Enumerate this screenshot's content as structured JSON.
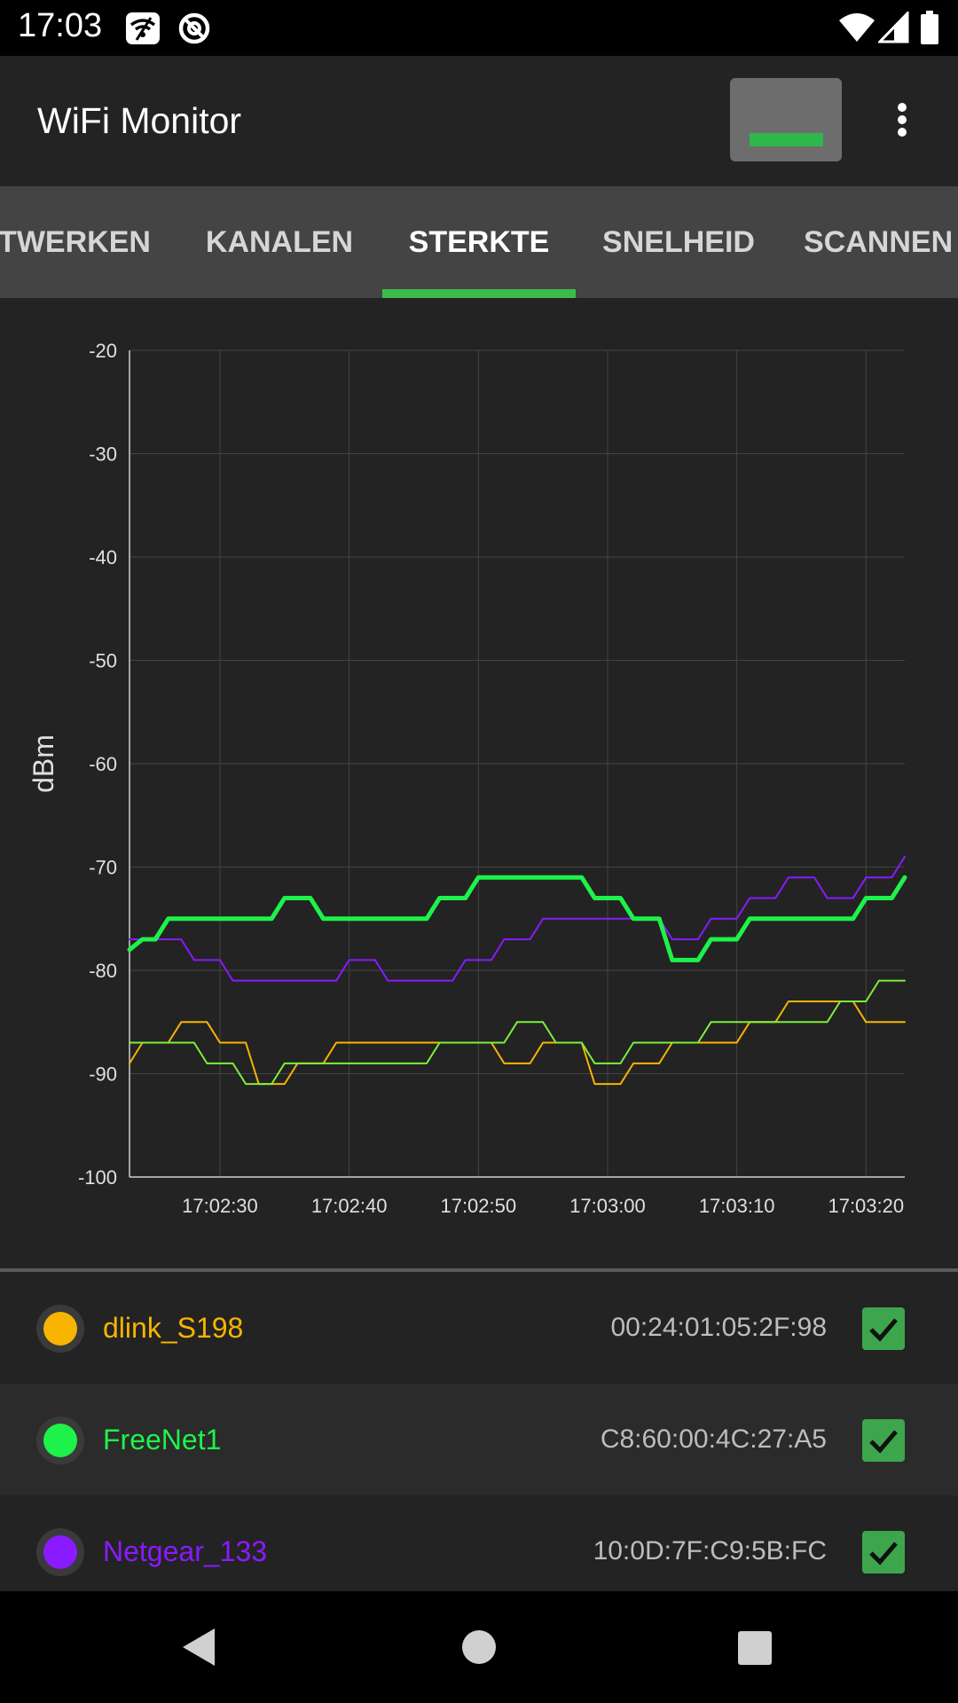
{
  "status_bar": {
    "time": "17:03",
    "icons": [
      "wifi-off-notification-icon",
      "at-sign-notification-icon",
      "wifi-signal-icon",
      "cell-signal-icon",
      "battery-icon"
    ]
  },
  "app_bar": {
    "title": "WiFi Monitor"
  },
  "tabs": [
    {
      "label": "TWERKEN",
      "active": false
    },
    {
      "label": "KANALEN",
      "active": false
    },
    {
      "label": "STERKTE",
      "active": true
    },
    {
      "label": "SNELHEID",
      "active": false
    },
    {
      "label": "SCANNEN",
      "active": false
    }
  ],
  "chart_data": {
    "type": "line",
    "ylabel": "dBm",
    "xlabel": "",
    "ylim": [
      -100,
      -20
    ],
    "y_ticks": [
      "-20",
      "-30",
      "-40",
      "-50",
      "-60",
      "-70",
      "-80",
      "-90",
      "-100"
    ],
    "x_ticks": [
      "17:02:30",
      "17:02:40",
      "17:02:50",
      "17:03:00",
      "17:03:10",
      "17:03:20"
    ],
    "grid": true,
    "x": [
      0,
      1,
      2,
      3,
      4,
      5,
      6,
      7,
      8,
      9,
      10,
      11,
      12,
      13,
      14,
      15,
      16,
      17,
      18,
      19,
      20,
      21,
      22,
      23,
      24,
      25,
      26,
      27,
      28,
      29,
      30,
      31,
      32,
      33,
      34,
      35,
      36,
      37,
      38,
      39,
      40,
      41,
      42,
      43,
      44,
      45,
      46,
      47,
      48,
      49,
      50,
      51,
      52,
      53,
      54,
      55,
      56,
      57,
      58,
      59,
      60
    ],
    "series": [
      {
        "name": "dlink_S198",
        "color": "#f8b400",
        "width": 2,
        "values": [
          -89,
          -87,
          -87,
          -87,
          -85,
          -85,
          -85,
          -87,
          -87,
          -87,
          -91,
          -91,
          -91,
          -89,
          -89,
          -89,
          -87,
          -87,
          -87,
          -87,
          -87,
          -87,
          -87,
          -87,
          -87,
          -87,
          -87,
          -87,
          -87,
          -89,
          -89,
          -89,
          -87,
          -87,
          -87,
          -87,
          -91,
          -91,
          -91,
          -89,
          -89,
          -89,
          -87,
          -87,
          -87,
          -87,
          -87,
          -87,
          -85,
          -85,
          -85,
          -83,
          -83,
          -83,
          -83,
          -83,
          -83,
          -85,
          -85,
          -85,
          -85
        ]
      },
      {
        "name": "FreeNet1",
        "color": "#1ef24a",
        "width": 5,
        "values": [
          -78,
          -77,
          -77,
          -75,
          -75,
          -75,
          -75,
          -75,
          -75,
          -75,
          -75,
          -75,
          -73,
          -73,
          -73,
          -75,
          -75,
          -75,
          -75,
          -75,
          -75,
          -75,
          -75,
          -75,
          -73,
          -73,
          -73,
          -71,
          -71,
          -71,
          -71,
          -71,
          -71,
          -71,
          -71,
          -71,
          -73,
          -73,
          -73,
          -75,
          -75,
          -75,
          -79,
          -79,
          -79,
          -77,
          -77,
          -77,
          -75,
          -75,
          -75,
          -75,
          -75,
          -75,
          -75,
          -75,
          -75,
          -73,
          -73,
          -73,
          -71
        ]
      },
      {
        "name": "Netgear_133",
        "color": "#8a1aff",
        "width": 2,
        "values": [
          -77,
          -77,
          -77,
          -77,
          -77,
          -79,
          -79,
          -79,
          -81,
          -81,
          -81,
          -81,
          -81,
          -81,
          -81,
          -81,
          -81,
          -79,
          -79,
          -79,
          -81,
          -81,
          -81,
          -81,
          -81,
          -81,
          -79,
          -79,
          -79,
          -77,
          -77,
          -77,
          -75,
          -75,
          -75,
          -75,
          -75,
          -75,
          -75,
          -75,
          -75,
          -75,
          -77,
          -77,
          -77,
          -75,
          -75,
          -75,
          -73,
          -73,
          -73,
          -71,
          -71,
          -71,
          -73,
          -73,
          -73,
          -71,
          -71,
          -71,
          -69
        ]
      },
      {
        "name": "",
        "color": "#7cf03a",
        "width": 2,
        "values": [
          -87,
          -87,
          -87,
          -87,
          -87,
          -87,
          -89,
          -89,
          -89,
          -91,
          -91,
          -91,
          -89,
          -89,
          -89,
          -89,
          -89,
          -89,
          -89,
          -89,
          -89,
          -89,
          -89,
          -89,
          -87,
          -87,
          -87,
          -87,
          -87,
          -87,
          -85,
          -85,
          -85,
          -87,
          -87,
          -87,
          -89,
          -89,
          -89,
          -87,
          -87,
          -87,
          -87,
          -87,
          -87,
          -85,
          -85,
          -85,
          -85,
          -85,
          -85,
          -85,
          -85,
          -85,
          -85,
          -83,
          -83,
          -83,
          -81,
          -81,
          -81
        ]
      }
    ]
  },
  "networks": [
    {
      "ssid": "dlink_S198",
      "bssid": "00:24:01:05:2F:98",
      "color": "#f8b400",
      "checked": true
    },
    {
      "ssid": "FreeNet1",
      "bssid": "C8:60:00:4C:27:A5",
      "color": "#1ef24a",
      "checked": true
    },
    {
      "ssid": "Netgear_133",
      "bssid": "10:0D:7F:C9:5B:FC",
      "color": "#8a1aff",
      "checked": true
    }
  ],
  "nav_bar": {
    "buttons": [
      "back-icon",
      "home-icon",
      "recents-icon"
    ]
  }
}
